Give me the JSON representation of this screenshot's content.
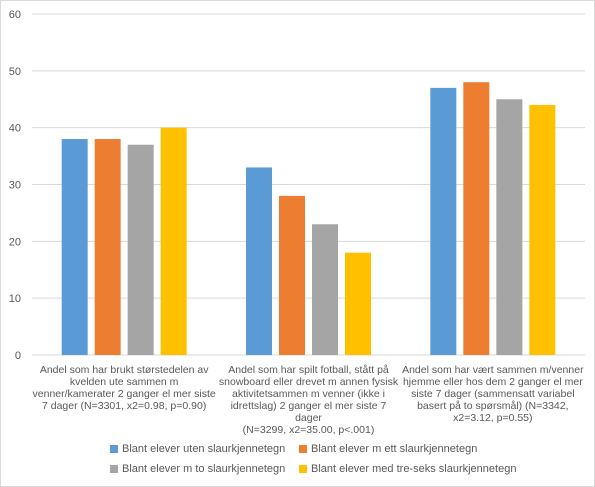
{
  "chart_data": {
    "type": "bar",
    "title": "",
    "xlabel": "",
    "ylabel": "",
    "ylim": [
      0,
      60
    ],
    "yticks": [
      0,
      10,
      20,
      30,
      40,
      50,
      60
    ],
    "grid": true,
    "legend_position": "bottom",
    "categories": [
      "Andel som har brukt størstedelen av kvelden ute sammen m venner/kamerater 2 ganger el mer siste 7 dager (N=3301, x2=0.98, p=0.90)",
      "Andel som har spilt fotball, stått på snowboard eller drevet m annen fysisk aktivitetsammen m venner (ikke i idrettslag) 2 ganger el mer siste 7 dager (N=3299, x2=35.00, p<.001)",
      "Andel som har vært sammen m/venner hjemme eller hos dem 2 ganger el mer siste 7 dager (sammensatt variabel basert på to spørsmål) (N=3342, x2=3.12, p=0.55)"
    ],
    "category_lines": [
      [
        "Andel som har brukt størstedelen av",
        "kvelden ute sammen m",
        "venner/kamerater 2 ganger el mer siste",
        "7 dager (N=3301, x2=0.98, p=0.90)"
      ],
      [
        "Andel som har spilt fotball, stått på",
        "snowboard eller drevet m annen fysisk",
        "aktivitetsammen m venner (ikke i",
        "idrettslag) 2 ganger el mer siste 7 dager",
        "(N=3299, x2=35.00, p<.001)"
      ],
      [
        "Andel som har vært sammen m/venner",
        "hjemme eller hos dem 2 ganger el mer",
        "siste 7 dager (sammensatt variabel",
        "basert på to spørsmål) (N=3342,",
        "x2=3.12, p=0.55)"
      ]
    ],
    "series": [
      {
        "name": "Blant elever uten slaurkjennetegn",
        "color": "#5B9BD5",
        "values": [
          38,
          33,
          47
        ]
      },
      {
        "name": "Blant elever m ett slaurkjennetegn",
        "color": "#ED7D31",
        "values": [
          38,
          28,
          48
        ]
      },
      {
        "name": "Blant elever m to slaurkjennetegn",
        "color": "#A5A5A5",
        "values": [
          37,
          23,
          45
        ]
      },
      {
        "name": "Blant elever med tre-seks slaurkjennetegn",
        "color": "#FFC000",
        "values": [
          40,
          18,
          44
        ]
      }
    ]
  }
}
